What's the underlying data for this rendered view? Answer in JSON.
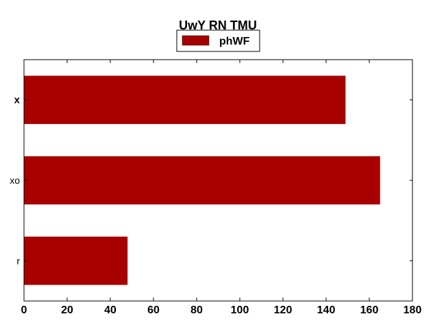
{
  "chart_data": {
    "type": "bar",
    "orientation": "horizontal",
    "title": "UwY RN TMU",
    "xlabel": "",
    "ylabel": "",
    "categories": [
      "x",
      "xo",
      "r"
    ],
    "series": [
      {
        "name": "phWF",
        "values": [
          149,
          165,
          48
        ],
        "color": "#a80000"
      }
    ],
    "xlim": [
      0,
      180
    ],
    "xticks": [
      "0",
      "20",
      "40",
      "60",
      "80",
      "100",
      "120",
      "140",
      "160",
      "180"
    ],
    "bold_categories": [
      "x"
    ],
    "grid": false,
    "legend_position": "top-center"
  }
}
